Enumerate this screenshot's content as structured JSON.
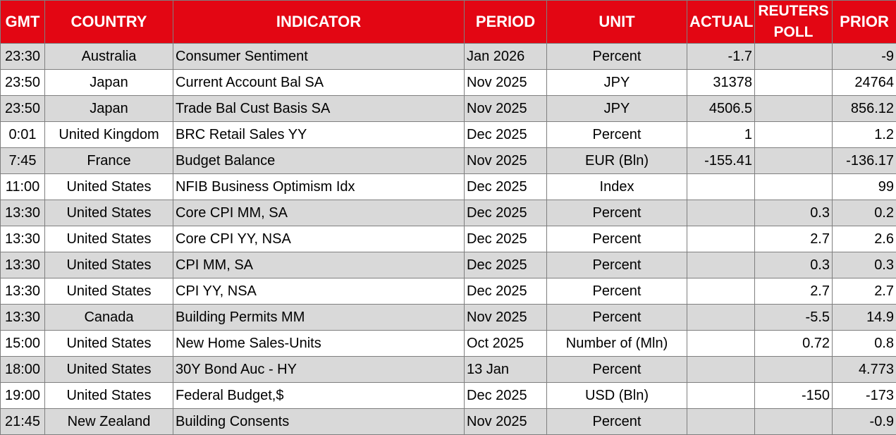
{
  "headers": {
    "gmt": "GMT",
    "country": "COUNTRY",
    "indicator": "INDICATOR",
    "period": "PERIOD",
    "unit": "UNIT",
    "actual": "ACTUAL",
    "poll_line1": "REUTERS",
    "poll_line2": "POLL",
    "prior": "PRIOR"
  },
  "colors": {
    "header_bg": "#e30613",
    "header_text": "#ffffff",
    "row_shade": "#d9d9d9"
  },
  "rows": [
    {
      "gmt": "23:30",
      "country": "Australia",
      "indicator": "Consumer Sentiment",
      "period": "Jan 2026",
      "unit": "Percent",
      "actual": "-1.7",
      "poll": "",
      "prior": "-9"
    },
    {
      "gmt": "23:50",
      "country": "Japan",
      "indicator": "Current Account Bal SA",
      "period": "Nov 2025",
      "unit": "JPY",
      "actual": "31378",
      "poll": "",
      "prior": "24764"
    },
    {
      "gmt": "23:50",
      "country": "Japan",
      "indicator": "Trade Bal Cust Basis SA",
      "period": "Nov 2025",
      "unit": "JPY",
      "actual": "4506.5",
      "poll": "",
      "prior": "856.12"
    },
    {
      "gmt": "0:01",
      "country": "United Kingdom",
      "indicator": "BRC Retail Sales YY",
      "period": "Dec 2025",
      "unit": "Percent",
      "actual": "1",
      "poll": "",
      "prior": "1.2"
    },
    {
      "gmt": "7:45",
      "country": "France",
      "indicator": "Budget Balance",
      "period": "Nov 2025",
      "unit": "EUR (Bln)",
      "actual": "-155.41",
      "poll": "",
      "prior": "-136.17"
    },
    {
      "gmt": "11:00",
      "country": "United States",
      "indicator": "NFIB Business Optimism Idx",
      "period": "Dec 2025",
      "unit": "Index",
      "actual": "",
      "poll": "",
      "prior": "99"
    },
    {
      "gmt": "13:30",
      "country": "United States",
      "indicator": "Core CPI MM, SA",
      "period": "Dec 2025",
      "unit": "Percent",
      "actual": "",
      "poll": "0.3",
      "prior": "0.2"
    },
    {
      "gmt": "13:30",
      "country": "United States",
      "indicator": "Core CPI YY, NSA",
      "period": "Dec 2025",
      "unit": "Percent",
      "actual": "",
      "poll": "2.7",
      "prior": "2.6"
    },
    {
      "gmt": "13:30",
      "country": "United States",
      "indicator": "CPI MM, SA",
      "period": "Dec 2025",
      "unit": "Percent",
      "actual": "",
      "poll": "0.3",
      "prior": "0.3"
    },
    {
      "gmt": "13:30",
      "country": "United States",
      "indicator": "CPI YY, NSA",
      "period": "Dec 2025",
      "unit": "Percent",
      "actual": "",
      "poll": "2.7",
      "prior": "2.7"
    },
    {
      "gmt": "13:30",
      "country": "Canada",
      "indicator": "Building Permits MM",
      "period": "Nov 2025",
      "unit": "Percent",
      "actual": "",
      "poll": "-5.5",
      "prior": "14.9"
    },
    {
      "gmt": "15:00",
      "country": "United States",
      "indicator": "New Home Sales-Units",
      "period": "Oct 2025",
      "unit": "Number of (Mln)",
      "actual": "",
      "poll": "0.72",
      "prior": "0.8"
    },
    {
      "gmt": "18:00",
      "country": "United States",
      "indicator": "30Y Bond Auc - HY",
      "period": "13 Jan",
      "unit": "Percent",
      "actual": "",
      "poll": "",
      "prior": "4.773"
    },
    {
      "gmt": "19:00",
      "country": "United States",
      "indicator": "Federal Budget,$",
      "period": "Dec 2025",
      "unit": "USD (Bln)",
      "actual": "",
      "poll": "-150",
      "prior": "-173"
    },
    {
      "gmt": "21:45",
      "country": "New Zealand",
      "indicator": "Building Consents",
      "period": "Nov 2025",
      "unit": "Percent",
      "actual": "",
      "poll": "",
      "prior": "-0.9"
    }
  ]
}
